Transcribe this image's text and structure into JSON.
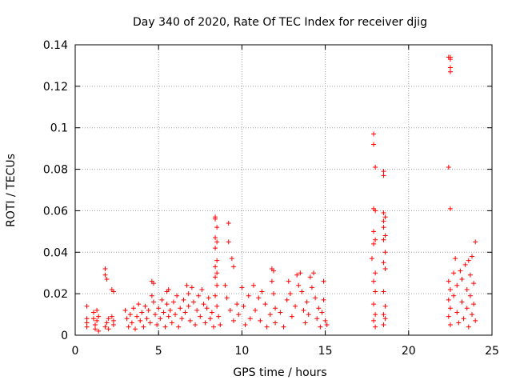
{
  "chart_data": {
    "type": "scatter",
    "title": "Day 340 of 2020, Rate Of TEC Index for receiver djig",
    "xlabel": "GPS time / hours",
    "ylabel": "ROTI / TECUs",
    "xlim": [
      0,
      25
    ],
    "ylim": [
      0,
      0.14
    ],
    "xticks": [
      0,
      5,
      10,
      15,
      20,
      25
    ],
    "xtick_labels": [
      "0",
      "5",
      "10",
      "15",
      "20",
      "25"
    ],
    "yticks": [
      0,
      0.02,
      0.04,
      0.06,
      0.08,
      0.1,
      0.12,
      0.14
    ],
    "ytick_labels": [
      "0",
      "0.02",
      "0.04",
      "0.06",
      "0.08",
      "0.1",
      "0.12",
      "0.14"
    ],
    "grid": true,
    "marker": "+",
    "color": "#ff0000",
    "series": [
      {
        "name": "ROTI",
        "points": [
          [
            0.7,
            0.014
          ],
          [
            0.7,
            0.008
          ],
          [
            0.7,
            0.006
          ],
          [
            0.7,
            0.004
          ],
          [
            1.1,
            0.011
          ],
          [
            1.1,
            0.008
          ],
          [
            1.2,
            0.005
          ],
          [
            1.2,
            0.003
          ],
          [
            1.3,
            0.012
          ],
          [
            1.3,
            0.007
          ],
          [
            1.4,
            0.002
          ],
          [
            1.4,
            0.009
          ],
          [
            1.8,
            0.032
          ],
          [
            1.8,
            0.029
          ],
          [
            1.9,
            0.027
          ],
          [
            1.9,
            0.006
          ],
          [
            1.8,
            0.004
          ],
          [
            2.0,
            0.008
          ],
          [
            2.0,
            0.003
          ],
          [
            2.2,
            0.022
          ],
          [
            2.3,
            0.021
          ],
          [
            2.2,
            0.009
          ],
          [
            2.3,
            0.007
          ],
          [
            2.3,
            0.005
          ],
          [
            3.0,
            0.012
          ],
          [
            3.1,
            0.008
          ],
          [
            3.2,
            0.004
          ],
          [
            3.3,
            0.01
          ],
          [
            3.4,
            0.006
          ],
          [
            3.5,
            0.013
          ],
          [
            3.6,
            0.003
          ],
          [
            3.7,
            0.009
          ],
          [
            3.8,
            0.015
          ],
          [
            3.9,
            0.007
          ],
          [
            4.0,
            0.011
          ],
          [
            4.1,
            0.004
          ],
          [
            4.2,
            0.014
          ],
          [
            4.3,
            0.008
          ],
          [
            4.4,
            0.012
          ],
          [
            4.5,
            0.006
          ],
          [
            4.6,
            0.026
          ],
          [
            4.7,
            0.025
          ],
          [
            4.6,
            0.019
          ],
          [
            4.7,
            0.016
          ],
          [
            4.8,
            0.01
          ],
          [
            4.9,
            0.005
          ],
          [
            5.0,
            0.013
          ],
          [
            5.1,
            0.008
          ],
          [
            5.2,
            0.017
          ],
          [
            5.3,
            0.011
          ],
          [
            5.4,
            0.004
          ],
          [
            5.5,
            0.021
          ],
          [
            5.5,
            0.015
          ],
          [
            5.6,
            0.022
          ],
          [
            5.6,
            0.009
          ],
          [
            5.7,
            0.012
          ],
          [
            5.8,
            0.006
          ],
          [
            5.9,
            0.016
          ],
          [
            6.0,
            0.01
          ],
          [
            6.1,
            0.019
          ],
          [
            6.2,
            0.004
          ],
          [
            6.3,
            0.013
          ],
          [
            6.4,
            0.008
          ],
          [
            6.5,
            0.017
          ],
          [
            6.6,
            0.011
          ],
          [
            6.7,
            0.024
          ],
          [
            6.8,
            0.02
          ],
          [
            6.8,
            0.014
          ],
          [
            6.9,
            0.007
          ],
          [
            7.0,
            0.023
          ],
          [
            7.1,
            0.016
          ],
          [
            7.2,
            0.005
          ],
          [
            7.3,
            0.012
          ],
          [
            7.4,
            0.019
          ],
          [
            7.5,
            0.009
          ],
          [
            7.6,
            0.022
          ],
          [
            7.7,
            0.015
          ],
          [
            7.8,
            0.006
          ],
          [
            7.9,
            0.013
          ],
          [
            8.0,
            0.018
          ],
          [
            8.1,
            0.008
          ],
          [
            8.2,
            0.011
          ],
          [
            8.3,
            0.004
          ],
          [
            8.4,
            0.057
          ],
          [
            8.4,
            0.056
          ],
          [
            8.5,
            0.052
          ],
          [
            8.4,
            0.047
          ],
          [
            8.5,
            0.045
          ],
          [
            8.4,
            0.042
          ],
          [
            8.5,
            0.036
          ],
          [
            8.4,
            0.033
          ],
          [
            8.5,
            0.03
          ],
          [
            8.4,
            0.028
          ],
          [
            8.5,
            0.024
          ],
          [
            8.4,
            0.019
          ],
          [
            8.5,
            0.014
          ],
          [
            8.6,
            0.009
          ],
          [
            8.7,
            0.005
          ],
          [
            9.0,
            0.024
          ],
          [
            9.1,
            0.018
          ],
          [
            9.2,
            0.054
          ],
          [
            9.2,
            0.045
          ],
          [
            9.4,
            0.037
          ],
          [
            9.5,
            0.033
          ],
          [
            9.3,
            0.012
          ],
          [
            9.5,
            0.007
          ],
          [
            9.7,
            0.015
          ],
          [
            9.8,
            0.01
          ],
          [
            10.0,
            0.023
          ],
          [
            10.1,
            0.014
          ],
          [
            10.2,
            0.005
          ],
          [
            10.4,
            0.019
          ],
          [
            10.5,
            0.008
          ],
          [
            10.7,
            0.024
          ],
          [
            10.8,
            0.012
          ],
          [
            11.0,
            0.018
          ],
          [
            11.1,
            0.007
          ],
          [
            11.2,
            0.021
          ],
          [
            11.4,
            0.015
          ],
          [
            11.5,
            0.004
          ],
          [
            11.7,
            0.01
          ],
          [
            11.8,
            0.032
          ],
          [
            11.9,
            0.031
          ],
          [
            11.8,
            0.026
          ],
          [
            11.9,
            0.02
          ],
          [
            12.0,
            0.013
          ],
          [
            12.0,
            0.006
          ],
          [
            12.3,
            0.011
          ],
          [
            12.5,
            0.004
          ],
          [
            12.7,
            0.017
          ],
          [
            12.8,
            0.026
          ],
          [
            12.9,
            0.02
          ],
          [
            13.0,
            0.009
          ],
          [
            13.2,
            0.014
          ],
          [
            13.3,
            0.029
          ],
          [
            13.4,
            0.024
          ],
          [
            13.5,
            0.03
          ],
          [
            13.6,
            0.021
          ],
          [
            13.7,
            0.012
          ],
          [
            13.8,
            0.006
          ],
          [
            13.9,
            0.016
          ],
          [
            14.0,
            0.01
          ],
          [
            14.1,
            0.028
          ],
          [
            14.2,
            0.023
          ],
          [
            14.3,
            0.03
          ],
          [
            14.4,
            0.018
          ],
          [
            14.5,
            0.008
          ],
          [
            14.6,
            0.013
          ],
          [
            14.7,
            0.004
          ],
          [
            14.8,
            0.011
          ],
          [
            14.9,
            0.017
          ],
          [
            14.9,
            0.026
          ],
          [
            15.0,
            0.007
          ],
          [
            15.1,
            0.005
          ],
          [
            17.8,
            0.037
          ],
          [
            17.9,
            0.097
          ],
          [
            17.9,
            0.092
          ],
          [
            18.0,
            0.081
          ],
          [
            17.9,
            0.061
          ],
          [
            18.0,
            0.06
          ],
          [
            17.9,
            0.05
          ],
          [
            18.0,
            0.046
          ],
          [
            17.9,
            0.044
          ],
          [
            18.0,
            0.03
          ],
          [
            17.9,
            0.026
          ],
          [
            18.0,
            0.021
          ],
          [
            17.9,
            0.015
          ],
          [
            18.0,
            0.01
          ],
          [
            17.9,
            0.007
          ],
          [
            18.0,
            0.004
          ],
          [
            18.5,
            0.079
          ],
          [
            18.5,
            0.077
          ],
          [
            18.5,
            0.059
          ],
          [
            18.6,
            0.057
          ],
          [
            18.5,
            0.055
          ],
          [
            18.5,
            0.052
          ],
          [
            18.6,
            0.048
          ],
          [
            18.5,
            0.046
          ],
          [
            18.6,
            0.04
          ],
          [
            18.5,
            0.035
          ],
          [
            18.6,
            0.032
          ],
          [
            18.5,
            0.021
          ],
          [
            18.6,
            0.014
          ],
          [
            18.5,
            0.01
          ],
          [
            18.6,
            0.008
          ],
          [
            18.5,
            0.005
          ],
          [
            22.4,
            0.134
          ],
          [
            22.5,
            0.134
          ],
          [
            22.5,
            0.133
          ],
          [
            22.5,
            0.129
          ],
          [
            22.5,
            0.127
          ],
          [
            22.4,
            0.081
          ],
          [
            22.5,
            0.061
          ],
          [
            22.4,
            0.026
          ],
          [
            22.5,
            0.022
          ],
          [
            22.4,
            0.017
          ],
          [
            22.5,
            0.013
          ],
          [
            22.4,
            0.009
          ],
          [
            22.5,
            0.005
          ],
          [
            22.7,
            0.03
          ],
          [
            22.7,
            0.019
          ],
          [
            22.8,
            0.037
          ],
          [
            22.9,
            0.024
          ],
          [
            22.9,
            0.011
          ],
          [
            23.0,
            0.006
          ],
          [
            23.1,
            0.031
          ],
          [
            23.2,
            0.027
          ],
          [
            23.2,
            0.016
          ],
          [
            23.3,
            0.008
          ],
          [
            23.4,
            0.034
          ],
          [
            23.5,
            0.022
          ],
          [
            23.5,
            0.013
          ],
          [
            23.6,
            0.036
          ],
          [
            23.6,
            0.004
          ],
          [
            23.7,
            0.029
          ],
          [
            23.7,
            0.019
          ],
          [
            23.8,
            0.01
          ],
          [
            23.8,
            0.038
          ],
          [
            23.9,
            0.025
          ],
          [
            23.9,
            0.015
          ],
          [
            24.0,
            0.045
          ],
          [
            24.0,
            0.007
          ]
        ]
      }
    ]
  }
}
